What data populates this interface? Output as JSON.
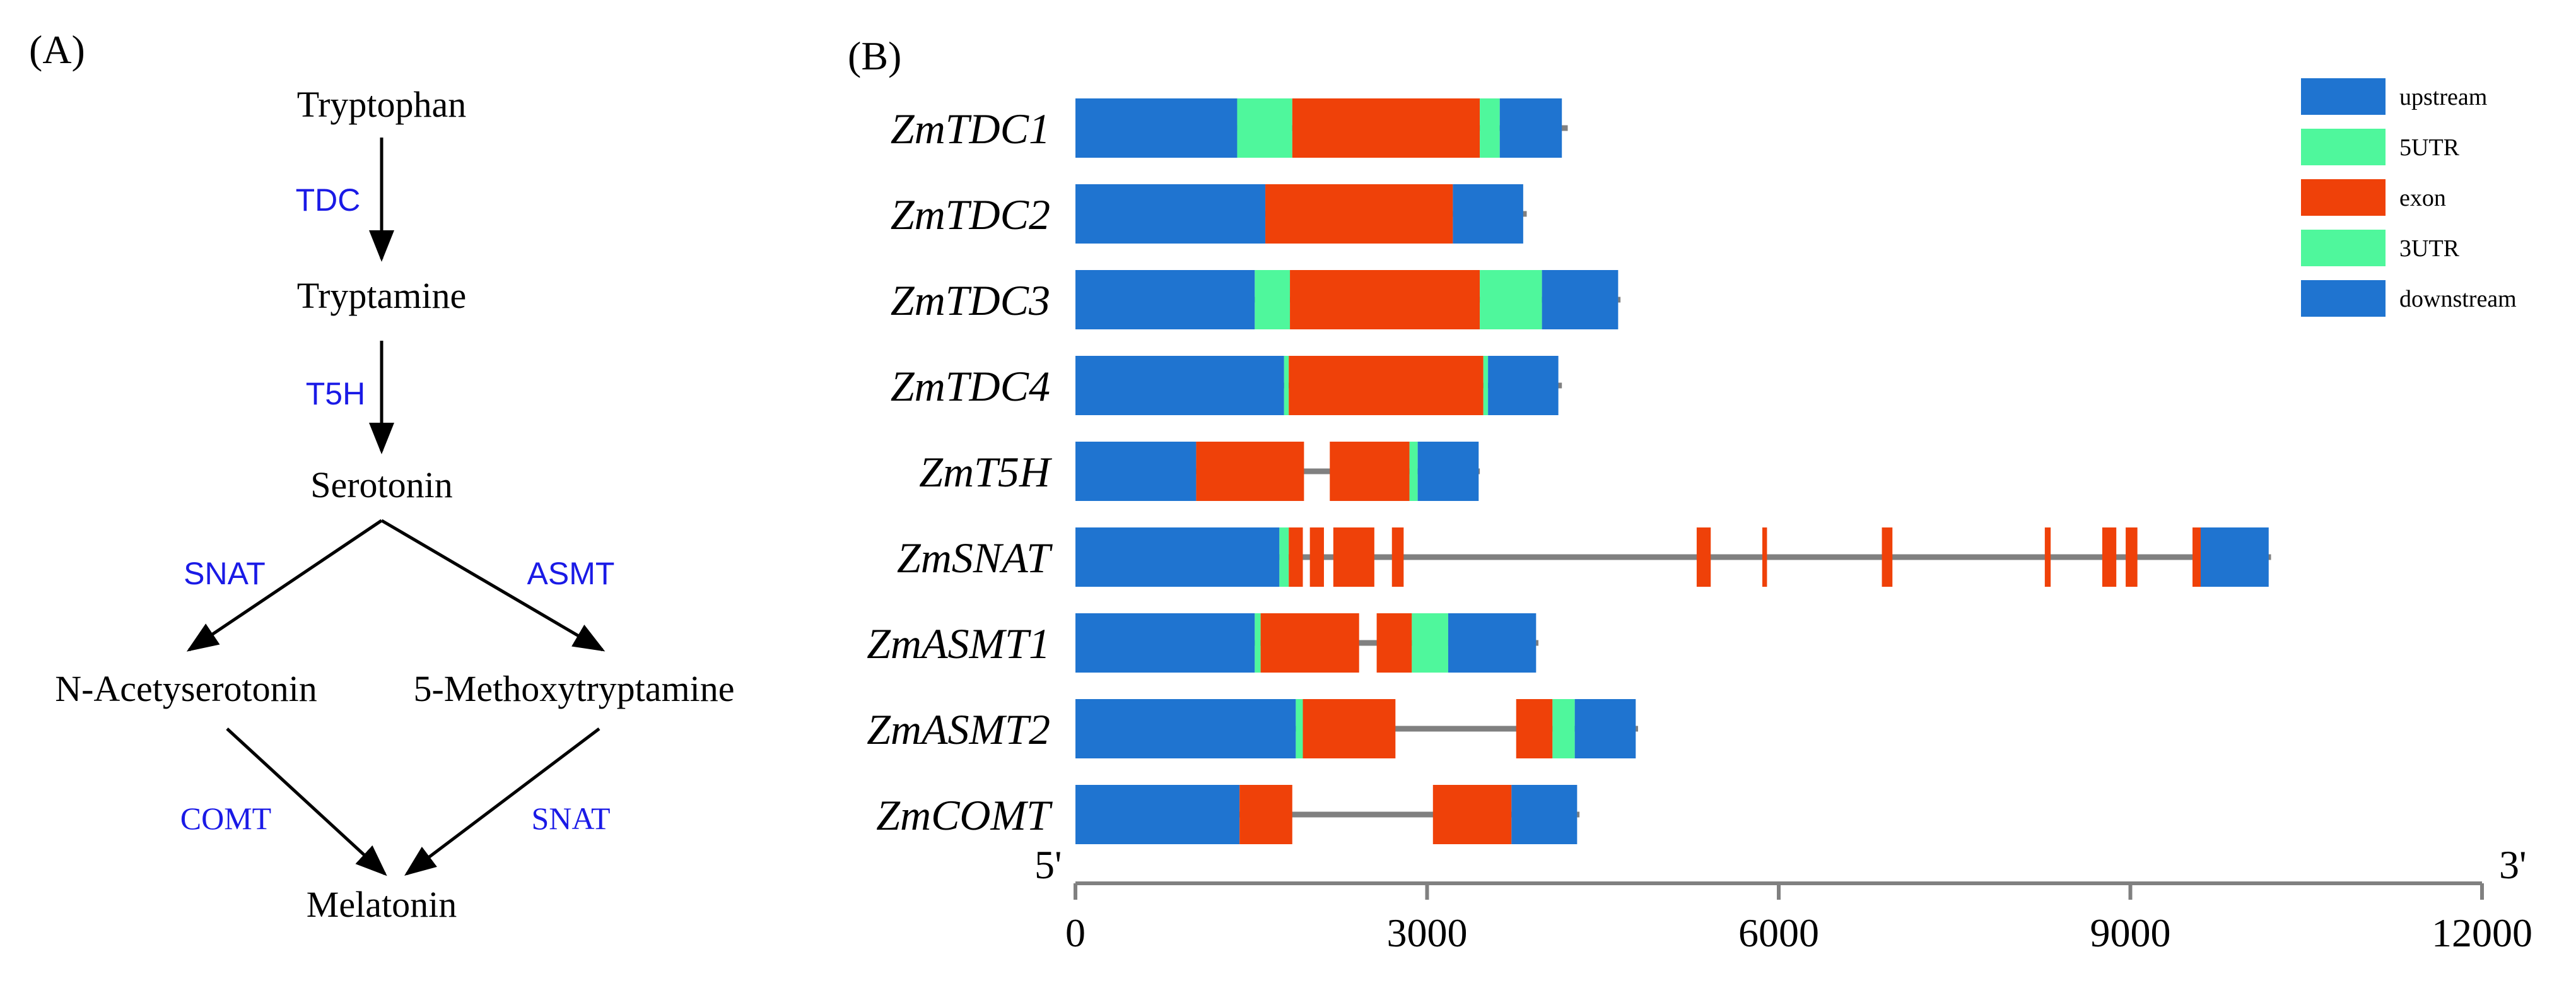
{
  "panel_a": {
    "label": "(A)",
    "compounds": {
      "tryptophan": "Tryptophan",
      "tryptamine": "Tryptamine",
      "serotonin": "Serotonin",
      "n_acetylserotonin": "N-Acetyserotonin",
      "methoxytryptamine": "5-Methoxytryptamine",
      "melatonin": "Melatonin"
    },
    "enzymes": {
      "tdc": "TDC",
      "t5h": "T5H",
      "snat_left": "SNAT",
      "asmt": "ASMT",
      "comt": "COMT",
      "snat_right": "SNAT"
    }
  },
  "panel_b": {
    "label": "(B)",
    "five_prime": "5'",
    "three_prime": "3'"
  },
  "colors": {
    "upstream": "#1f74d0",
    "utr5": "#4ff79c",
    "exon": "#ef4109",
    "utr3": "#4ff79c",
    "downstream": "#1f74d0",
    "intron": "#808080",
    "enzyme_text": "#1a1ae6"
  },
  "chart_data": {
    "type": "gene-structure",
    "x_unit": "bp",
    "xlim": [
      0,
      12000
    ],
    "x_ticks": [
      0,
      3000,
      6000,
      9000,
      12000
    ],
    "legend": [
      {
        "key": "upstream",
        "label": "upstream"
      },
      {
        "key": "utr5",
        "label": "5UTR"
      },
      {
        "key": "exon",
        "label": "exon"
      },
      {
        "key": "utr3",
        "label": "3UTR"
      },
      {
        "key": "downstream",
        "label": "downstream"
      }
    ],
    "genes": [
      {
        "name": "ZmTDC1",
        "end": 4200,
        "segments": [
          {
            "type": "upstream",
            "start": 0,
            "end": 1380
          },
          {
            "type": "utr5",
            "start": 1380,
            "end": 1850
          },
          {
            "type": "exon",
            "start": 1850,
            "end": 3450
          },
          {
            "type": "utr3",
            "start": 3450,
            "end": 3620
          },
          {
            "type": "downstream",
            "start": 3620,
            "end": 4150
          }
        ]
      },
      {
        "name": "ZmTDC2",
        "end": 3850,
        "segments": [
          {
            "type": "upstream",
            "start": 0,
            "end": 1620
          },
          {
            "type": "exon",
            "start": 1620,
            "end": 3220
          },
          {
            "type": "downstream",
            "start": 3220,
            "end": 3820
          }
        ]
      },
      {
        "name": "ZmTDC3",
        "end": 4650,
        "segments": [
          {
            "type": "upstream",
            "start": 0,
            "end": 1530
          },
          {
            "type": "utr5",
            "start": 1530,
            "end": 1830
          },
          {
            "type": "exon",
            "start": 1830,
            "end": 3450
          },
          {
            "type": "utr3",
            "start": 3450,
            "end": 3980
          },
          {
            "type": "downstream",
            "start": 3980,
            "end": 4630
          }
        ]
      },
      {
        "name": "ZmTDC4",
        "end": 4150,
        "segments": [
          {
            "type": "upstream",
            "start": 0,
            "end": 1780
          },
          {
            "type": "utr5",
            "start": 1780,
            "end": 1820
          },
          {
            "type": "exon",
            "start": 1820,
            "end": 3480
          },
          {
            "type": "utr3",
            "start": 3480,
            "end": 3520
          },
          {
            "type": "downstream",
            "start": 3520,
            "end": 4120
          }
        ]
      },
      {
        "name": "ZmT5H",
        "end": 3450,
        "segments": [
          {
            "type": "upstream",
            "start": 0,
            "end": 1030
          },
          {
            "type": "exon",
            "start": 1030,
            "end": 1950
          },
          {
            "type": "exon",
            "start": 2170,
            "end": 2850
          },
          {
            "type": "utr3",
            "start": 2850,
            "end": 2920
          },
          {
            "type": "downstream",
            "start": 2920,
            "end": 3440
          }
        ]
      },
      {
        "name": "ZmSNAT",
        "end": 10200,
        "segments": [
          {
            "type": "upstream",
            "start": 0,
            "end": 1740
          },
          {
            "type": "utr5",
            "start": 1740,
            "end": 1820
          },
          {
            "type": "exon",
            "start": 1820,
            "end": 1940
          },
          {
            "type": "exon",
            "start": 2000,
            "end": 2120
          },
          {
            "type": "exon",
            "start": 2200,
            "end": 2550
          },
          {
            "type": "exon",
            "start": 2700,
            "end": 2800
          },
          {
            "type": "exon",
            "start": 5300,
            "end": 5420
          },
          {
            "type": "exon",
            "start": 5860,
            "end": 5900
          },
          {
            "type": "exon",
            "start": 6880,
            "end": 6970
          },
          {
            "type": "exon",
            "start": 8270,
            "end": 8320
          },
          {
            "type": "exon",
            "start": 8760,
            "end": 8880
          },
          {
            "type": "exon",
            "start": 8960,
            "end": 9060
          },
          {
            "type": "exon",
            "start": 9530,
            "end": 9600
          },
          {
            "type": "downstream",
            "start": 9600,
            "end": 10180
          }
        ]
      },
      {
        "name": "ZmASMT1",
        "end": 3950,
        "segments": [
          {
            "type": "upstream",
            "start": 0,
            "end": 1530
          },
          {
            "type": "utr5",
            "start": 1530,
            "end": 1580
          },
          {
            "type": "exon",
            "start": 1580,
            "end": 2420
          },
          {
            "type": "exon",
            "start": 2570,
            "end": 2870
          },
          {
            "type": "utr3",
            "start": 2870,
            "end": 3180
          },
          {
            "type": "downstream",
            "start": 3180,
            "end": 3930
          }
        ]
      },
      {
        "name": "ZmASMT2",
        "end": 4800,
        "segments": [
          {
            "type": "upstream",
            "start": 0,
            "end": 1880
          },
          {
            "type": "utr5",
            "start": 1880,
            "end": 1940
          },
          {
            "type": "exon",
            "start": 1940,
            "end": 2730
          },
          {
            "type": "exon",
            "start": 3760,
            "end": 4070
          },
          {
            "type": "utr3",
            "start": 4070,
            "end": 4260
          },
          {
            "type": "downstream",
            "start": 4260,
            "end": 4780
          }
        ]
      },
      {
        "name": "ZmCOMT",
        "end": 4300,
        "segments": [
          {
            "type": "upstream",
            "start": 0,
            "end": 1400
          },
          {
            "type": "exon",
            "start": 1400,
            "end": 1850
          },
          {
            "type": "exon",
            "start": 3050,
            "end": 3720
          },
          {
            "type": "downstream",
            "start": 3720,
            "end": 4280
          }
        ]
      }
    ]
  }
}
